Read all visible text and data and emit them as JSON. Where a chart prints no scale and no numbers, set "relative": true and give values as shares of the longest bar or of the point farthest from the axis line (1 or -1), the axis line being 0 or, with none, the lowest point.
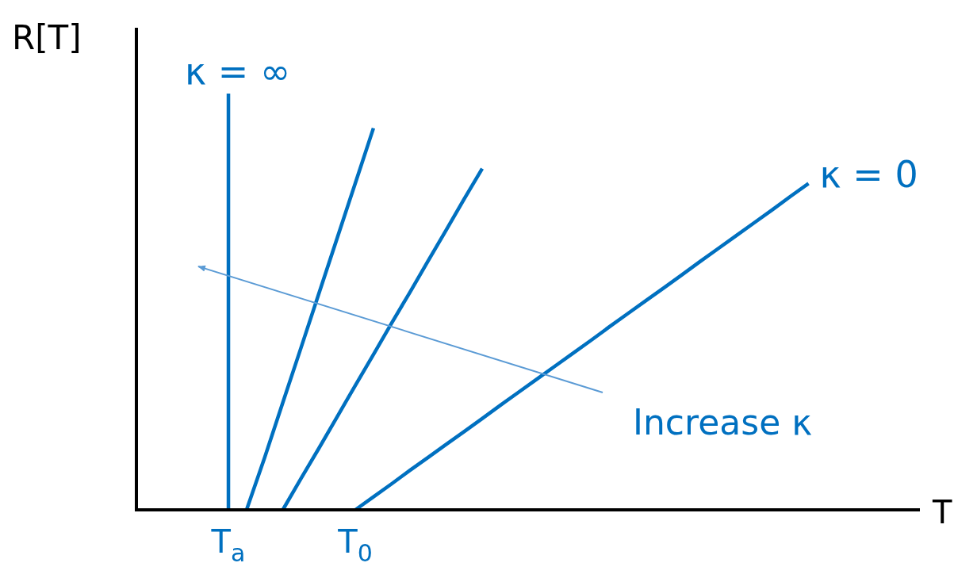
{
  "chart_data": {
    "type": "line",
    "relative": true,
    "xlabel": "T",
    "ylabel": "R[T]",
    "categories": [
      null,
      null,
      null,
      null,
      "T$_{a}$",
      null,
      null,
      null,
      null,
      null,
      null,
      "T$_{0}$",
      null,
      null,
      null,
      null,
      null,
      null,
      null,
      null,
      null,
      null,
      null,
      null,
      null,
      null,
      null,
      null,
      null,
      null,
      null,
      null,
      null,
      null,
      null,
      null,
      null,
      null,
      null,
      null,
      null,
      null,
      null
    ],
    "series": [
      {
        "color": "#0070c0",
        "values": [
          null,
          null,
          null,
          null,
          null,
          0,
          0.137,
          0.281,
          0.424,
          0.568,
          0.712,
          0.856,
          1,
          null,
          null,
          null,
          null,
          null,
          null,
          null,
          null,
          null,
          null,
          null,
          null,
          null,
          null,
          null,
          null,
          null,
          null,
          null,
          null,
          null,
          null,
          null,
          null,
          null,
          null,
          null,
          null,
          null,
          null
        ]
      },
      {
        "color": "#0070c0",
        "values": [
          null,
          null,
          null,
          null,
          null,
          null,
          null,
          0,
          0.082,
          0.162,
          0.244,
          0.326,
          0.407,
          0.489,
          0.569,
          0.651,
          0.732,
          0.814,
          0.894,
          null,
          null,
          null,
          null,
          null,
          null,
          null,
          null,
          null,
          null,
          null,
          null,
          null,
          null,
          null,
          null,
          null,
          null,
          null,
          null,
          null,
          null,
          null,
          null
        ]
      },
      {
        "color": "#0070c0",
        "values": [
          null,
          null,
          null,
          null,
          null,
          null,
          null,
          null,
          null,
          null,
          null,
          0,
          0.034,
          0.068,
          0.103,
          0.137,
          0.171,
          0.205,
          0.239,
          0.274,
          0.308,
          0.342,
          0.376,
          0.41,
          0.444,
          0.479,
          0.513,
          0.547,
          0.581,
          0.615,
          0.65,
          0.684,
          0.718,
          0.752,
          0.786,
          0.821,
          0.855,
          null,
          null,
          null,
          null,
          null,
          null
        ]
      }
    ],
    "ref_lines": [
      {
        "axis": "x",
        "value": "T$_{a}$",
        "label": "κ = ∞",
        "color": "#0070c0"
      }
    ],
    "annotations": [
      "κ = 0",
      "Increase κ"
    ]
  }
}
